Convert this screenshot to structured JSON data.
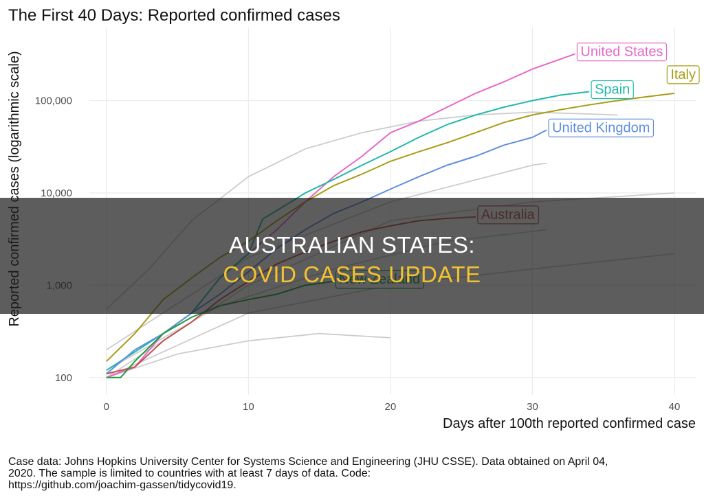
{
  "chart_data": {
    "type": "line",
    "title": "The First 40 Days: Reported confirmed cases",
    "x_label": "Days after 100th reported confirmed case",
    "y_label": "Reported confirmed cases (logarithmic scale)",
    "log_y": true,
    "grid": true,
    "xlim": [
      -1.2,
      41.5
    ],
    "ylim": [
      65,
      620000
    ],
    "xticks": [
      0,
      10,
      20,
      30,
      40
    ],
    "yticks": [
      100,
      {
        "value": 1000,
        "label": "1,000"
      },
      {
        "value": 10000,
        "label": "10,000"
      },
      {
        "value": 100000,
        "label": "100,000"
      }
    ],
    "series": [
      {
        "name": "United States",
        "color": "#e766c9",
        "x": [
          0,
          2,
          4,
          6,
          8,
          10,
          12,
          14,
          16,
          18,
          20,
          22,
          24,
          26,
          28,
          30,
          33
        ],
        "values": [
          100,
          130,
          300,
          500,
          1200,
          2200,
          4000,
          8000,
          15000,
          25000,
          45000,
          60000,
          85000,
          120000,
          160000,
          220000,
          320000
        ]
      },
      {
        "name": "Spain",
        "color": "#1fb8a8",
        "x": [
          0,
          4,
          6,
          8,
          10,
          11,
          13,
          14,
          16,
          18,
          20,
          22,
          24,
          26,
          28,
          30,
          32,
          34
        ],
        "values": [
          120,
          300,
          500,
          1200,
          2200,
          5200,
          8000,
          10000,
          14000,
          20000,
          28000,
          40000,
          55000,
          70000,
          85000,
          100000,
          115000,
          125000
        ]
      },
      {
        "name": "Italy",
        "color": "#a89c14",
        "x": [
          0,
          2,
          4,
          6,
          8,
          10,
          12,
          14,
          16,
          18,
          20,
          22,
          24,
          26,
          28,
          30,
          32,
          34,
          36,
          38,
          40
        ],
        "values": [
          150,
          300,
          700,
          1200,
          2000,
          3000,
          5000,
          8000,
          12000,
          16000,
          22000,
          28000,
          35000,
          45000,
          58000,
          70000,
          80000,
          90000,
          100000,
          110000,
          120000
        ]
      },
      {
        "name": "United Kingdom",
        "color": "#5e8ee0",
        "x": [
          0,
          2,
          4,
          6,
          8,
          10,
          12,
          14,
          16,
          18,
          20,
          22,
          24,
          26,
          28,
          30,
          31
        ],
        "values": [
          110,
          200,
          300,
          500,
          800,
          1400,
          2500,
          4000,
          6000,
          8000,
          11000,
          15000,
          20000,
          25000,
          33000,
          40000,
          48000
        ]
      },
      {
        "name": "Australia",
        "color": "#c0504d",
        "x": [
          0,
          2,
          4,
          6,
          8,
          10,
          12,
          14,
          16,
          18,
          20,
          22,
          24,
          26
        ],
        "values": [
          110,
          130,
          250,
          400,
          700,
          1100,
          1700,
          2300,
          3000,
          3800,
          4400,
          5000,
          5300,
          5500
        ]
      },
      {
        "name": "New Zealand",
        "color": "#1a9e3a",
        "x": [
          0,
          1,
          2,
          4,
          6,
          8,
          10,
          12,
          14,
          16
        ],
        "values": [
          100,
          100,
          150,
          300,
          450,
          600,
          700,
          800,
          1000,
          1100
        ]
      }
    ],
    "background_series": [
      {
        "color": "#cccccc",
        "x": [
          0,
          3,
          6,
          10,
          14,
          18,
          22,
          26,
          30,
          36
        ],
        "values": [
          550,
          1500,
          5000,
          15000,
          30000,
          45000,
          60000,
          70000,
          75000,
          70000
        ]
      },
      {
        "color": "#cccccc",
        "x": [
          0,
          10,
          20,
          30,
          40
        ],
        "values": [
          100,
          1000,
          5000,
          8000,
          10000
        ]
      },
      {
        "color": "#cccccc",
        "x": [
          0,
          10,
          20,
          30,
          40
        ],
        "values": [
          100,
          500,
          1000,
          1500,
          2200
        ]
      },
      {
        "color": "#cccccc",
        "x": [
          0,
          8,
          16,
          24,
          31
        ],
        "values": [
          120,
          600,
          1500,
          3000,
          4000
        ]
      },
      {
        "color": "#cccccc",
        "x": [
          0,
          10,
          20,
          30,
          31
        ],
        "values": [
          200,
          2000,
          8000,
          20000,
          21000
        ]
      },
      {
        "color": "#cccccc",
        "x": [
          0,
          5,
          10,
          15,
          20
        ],
        "values": [
          100,
          180,
          250,
          300,
          270
        ]
      }
    ],
    "caption": [
      "Case data: Johns Hopkins University Center for Systems Science and Engineering (JHU CSSE). Data obtained on April 04,",
      "2020. The sample is limited to countries with at least 7 days of data. Code:",
      "https://github.com/joachim-gassen/tidycovid19."
    ]
  },
  "overlay": {
    "line1": "AUSTRALIAN STATES:",
    "line2": "COVID CASES UPDATE"
  }
}
